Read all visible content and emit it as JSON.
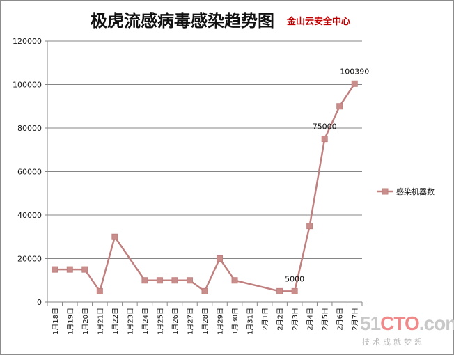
{
  "title": "极虎流感病毒感染趋势图",
  "subtitle": "金山云安全中心",
  "watermark": {
    "brand_prefix": "51",
    "brand_highlight": "CTO",
    "brand_suffix": ".com",
    "slogan": "技术成就梦想"
  },
  "colors": {
    "series": "#c0807f",
    "marker": "#c98e8c",
    "grid": "#868686",
    "subtitle": "#c00000"
  },
  "chart_data": {
    "type": "line",
    "x": [
      "1月18日",
      "1月19日",
      "1月20日",
      "1月21日",
      "1月22日",
      "1月23日",
      "1月24日",
      "1月25日",
      "1月26日",
      "1月27日",
      "1月28日",
      "1月29日",
      "1月30日",
      "1月31日",
      "2月1日",
      "2月2日",
      "2月3日",
      "2月4日",
      "2月5日",
      "2月6日",
      "2月7日"
    ],
    "series": [
      {
        "name": "感染机器数",
        "values": [
          15000,
          15000,
          15000,
          5000,
          30000,
          null,
          10000,
          10000,
          10000,
          10000,
          5000,
          20000,
          10000,
          null,
          null,
          5000,
          5000,
          35000,
          75000,
          90000,
          100390
        ]
      }
    ],
    "data_labels": [
      {
        "index": 16,
        "text": "5000"
      },
      {
        "index": 18,
        "text": "75000"
      },
      {
        "index": 20,
        "text": "100390"
      }
    ],
    "y_ticks": [
      "0",
      "20000",
      "40000",
      "60000",
      "80000",
      "100000",
      "120000"
    ],
    "ylim": [
      0,
      120000
    ],
    "grid": true,
    "legend_position": "right"
  }
}
